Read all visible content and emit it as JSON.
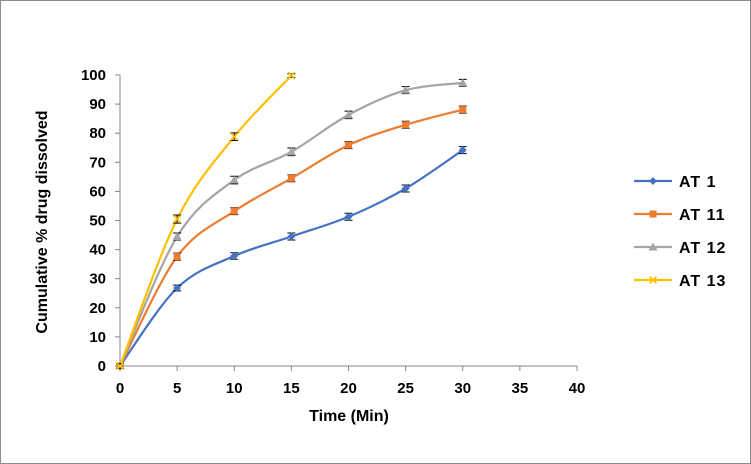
{
  "chart_data": {
    "type": "line",
    "title": "",
    "xlabel": "Time (Min)",
    "ylabel": "Cumulative % drug dissolved",
    "xlim": [
      0,
      40
    ],
    "ylim": [
      0,
      100
    ],
    "xticks": [
      "0",
      "5",
      "10",
      "15",
      "20",
      "25",
      "30",
      "35",
      "40"
    ],
    "yticks": [
      "0",
      "10",
      "20",
      "30",
      "40",
      "50",
      "60",
      "70",
      "80",
      "90",
      "100"
    ],
    "grid": false,
    "legend_position": "right",
    "series": [
      {
        "name": "AT 1",
        "color": "#4472C4",
        "marker": "diamond",
        "x": [
          0,
          5,
          10,
          15,
          20,
          25,
          30
        ],
        "y": [
          0,
          26.8,
          37.8,
          44.5,
          51.3,
          61.0,
          74.2
        ],
        "err": [
          0.8,
          1.0,
          1.1,
          1.2,
          1.2,
          1.2,
          1.2
        ]
      },
      {
        "name": "AT 11",
        "color": "#ED7D31",
        "marker": "square",
        "x": [
          0,
          5,
          10,
          15,
          20,
          25,
          30
        ],
        "y": [
          0,
          37.6,
          53.2,
          64.5,
          75.9,
          82.9,
          88.1
        ],
        "err": [
          0.8,
          1.2,
          1.2,
          1.2,
          1.2,
          1.2,
          1.2
        ]
      },
      {
        "name": "AT 12",
        "color": "#A5A5A5",
        "marker": "triangle",
        "x": [
          0,
          5,
          10,
          15,
          20,
          25,
          30
        ],
        "y": [
          0,
          44.5,
          63.9,
          73.6,
          86.3,
          94.8,
          97.3
        ],
        "err": [
          0.8,
          1.2,
          1.3,
          1.3,
          1.3,
          1.2,
          1.2
        ]
      },
      {
        "name": "AT 13",
        "color": "#FFC000",
        "marker": "x",
        "x": [
          0,
          5,
          10,
          15
        ],
        "y": [
          0,
          50.5,
          78.8,
          99.8
        ],
        "err": [
          0.8,
          1.4,
          1.3,
          0.6
        ]
      }
    ]
  }
}
